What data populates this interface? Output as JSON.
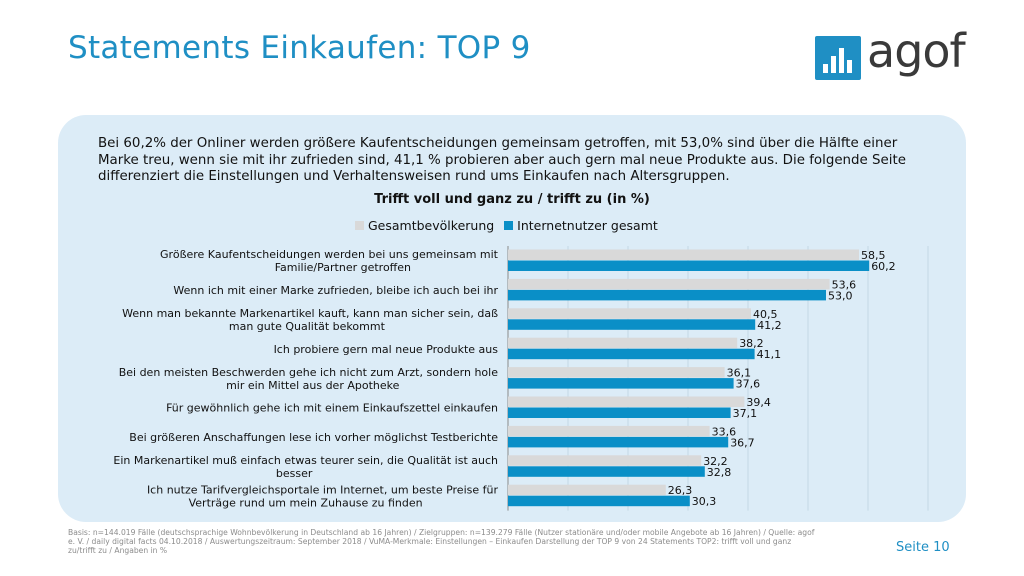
{
  "title": "Statements Einkaufen: TOP 9",
  "logo": {
    "text": "agof",
    "icon": "bar-chart-logo-icon"
  },
  "intro": "Bei 60,2% der Onliner werden größere Kaufentscheidungen gemeinsam getroffen, mit 53,0% sind über die Hälfte einer Marke treu, wenn sie mit ihr zufrieden sind, 41,1 % probieren aber auch gern mal neue Produkte aus. Die folgende Seite differenziert die Einstellungen und Verhaltensweisen rund ums Einkaufen nach Altersgruppen.",
  "footnote": "Basis: n=144.019 Fälle (deutschsprachige Wohnbevölkerung in Deutschland ab 16 Jahren) / Zielgruppen: n=139.279 Fälle (Nutzer stationäre und/oder mobile Angebote ab 16 Jahren) / Quelle: agof e. V. / daily digital facts 04.10.2018 / Auswertungszeitraum: September 2018 / VuMA-Merkmale: Einstellungen – Einkaufen  Darstellung der TOP 9 von 24 Statements TOP2: trifft voll und ganz zu/trifft zu / Angaben in %",
  "page_label": "Seite 10",
  "colors": {
    "accent": "#1f8fc4",
    "panel": "#dcecf7",
    "series1": "#d9d9d9",
    "series2": "#0a8fc7"
  },
  "chart_data": {
    "type": "bar",
    "orientation": "horizontal",
    "title": "Trifft voll und ganz zu / trifft zu (in %)",
    "categories": [
      [
        "Größere Kaufentscheidungen werden bei uns gemeinsam mit",
        "Familie/Partner getroffen"
      ],
      [
        "Wenn ich mit einer Marke zufrieden, bleibe ich auch bei ihr"
      ],
      [
        "Wenn man bekannte Markenartikel kauft, kann man sicher sein, daß",
        "man gute Qualität bekommt"
      ],
      [
        "Ich probiere gern mal neue Produkte aus"
      ],
      [
        "Bei den meisten Beschwerden gehe ich nicht zum Arzt, sondern hole",
        "mir ein Mittel aus der Apotheke"
      ],
      [
        "Für gewöhnlich gehe ich mit einem Einkaufszettel einkaufen"
      ],
      [
        "Bei größeren Anschaffungen lese ich vorher möglichst Testberichte"
      ],
      [
        "Ein Markenartikel muß einfach etwas teurer sein, die Qualität ist auch",
        "besser"
      ],
      [
        "Ich nutze Tarifvergleichsportale im Internet, um beste Preise für",
        "Verträge rund um mein Zuhause zu finden"
      ]
    ],
    "series": [
      {
        "name": "Gesamtbevölkerung",
        "values": [
          58.5,
          53.6,
          40.5,
          38.2,
          36.1,
          39.4,
          33.6,
          32.2,
          26.3
        ],
        "labels": [
          "58,5",
          "53,6",
          "40,5",
          "38,2",
          "36,1",
          "39,4",
          "33,6",
          "32,2",
          "26,3"
        ]
      },
      {
        "name": "Internetnutzer gesamt",
        "values": [
          60.2,
          53.0,
          41.2,
          41.1,
          37.6,
          37.1,
          36.7,
          32.8,
          30.3
        ],
        "labels": [
          "60,2",
          "53,0",
          "41,2",
          "41,1",
          "37,6",
          "37,1",
          "36,7",
          "32,8",
          "30,3"
        ]
      }
    ],
    "xlim": [
      0,
      70
    ],
    "grid": true,
    "legend": "top"
  }
}
